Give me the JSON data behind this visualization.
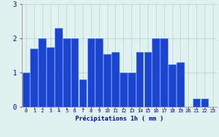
{
  "hours": [
    0,
    1,
    2,
    3,
    4,
    5,
    6,
    7,
    8,
    9,
    10,
    11,
    12,
    13,
    14,
    15,
    16,
    17,
    18,
    19,
    20,
    21,
    22,
    23
  ],
  "values": [
    1.0,
    1.7,
    2.0,
    1.75,
    2.3,
    2.0,
    2.0,
    0.8,
    2.0,
    2.0,
    1.55,
    1.6,
    1.0,
    1.0,
    1.6,
    1.6,
    2.0,
    2.0,
    1.25,
    1.3,
    0.0,
    0.25,
    0.25,
    0.0
  ],
  "bar_color": "#1a44cc",
  "bar_edge_color": "#3366ff",
  "bg_color": "#dff2f2",
  "grid_color": "#bbbbbb",
  "xlabel": "Précipitations 1h ( mm )",
  "xlabel_color": "#000099",
  "tick_color": "#000099",
  "ylim": [
    0,
    3
  ],
  "yticks": [
    0,
    1,
    2,
    3
  ],
  "xlim": [
    -0.5,
    23.5
  ]
}
